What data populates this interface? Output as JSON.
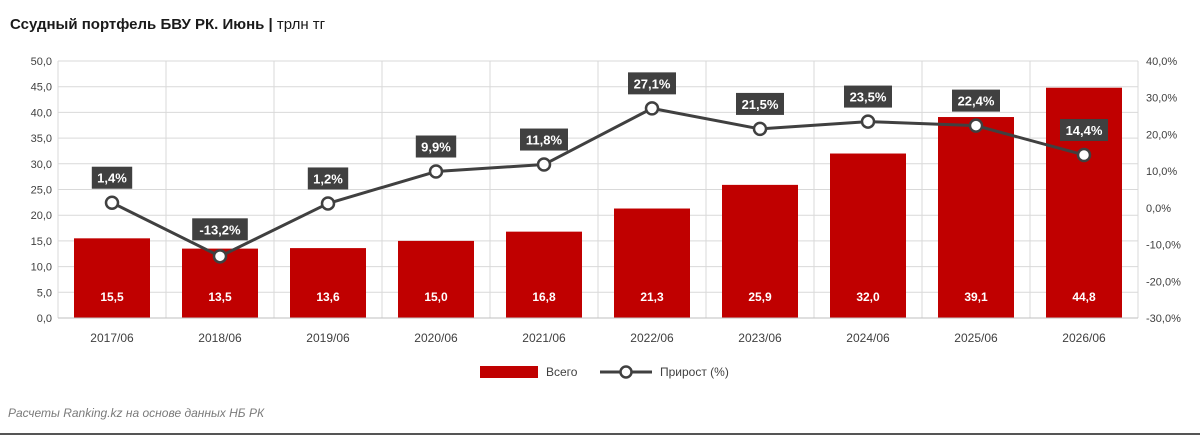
{
  "title": {
    "main": "Ссудный портфель БВУ РК. Июнь",
    "separator": " | ",
    "unit": "трлн тг"
  },
  "source": "Расчеты Ranking.kz на основе данных НБ РК",
  "colors": {
    "bar": "#c00000",
    "line": "#404040",
    "marker_fill": "#ffffff",
    "grid": "#d9d9d9",
    "label_box": "#404040"
  },
  "chart_data": {
    "type": "bar",
    "categories": [
      "2017/06",
      "2018/06",
      "2019/06",
      "2020/06",
      "2021/06",
      "2022/06",
      "2023/06",
      "2024/06",
      "2025/06",
      "2026/06"
    ],
    "series": [
      {
        "name": "Всего",
        "type": "bar",
        "axis": "left",
        "values": [
          15.5,
          13.5,
          13.6,
          15.0,
          16.8,
          21.3,
          25.9,
          32.0,
          39.1,
          44.8
        ],
        "labels": [
          "15,5",
          "13,5",
          "13,6",
          "15,0",
          "16,8",
          "21,3",
          "25,9",
          "32,0",
          "39,1",
          "44,8"
        ]
      },
      {
        "name": "Прирост (%)",
        "type": "line",
        "axis": "right",
        "values": [
          1.4,
          -13.2,
          1.2,
          9.9,
          11.8,
          27.1,
          21.5,
          23.5,
          22.4,
          14.4
        ],
        "labels": [
          "1,4%",
          "-13,2%",
          "1,2%",
          "9,9%",
          "11,8%",
          "27,1%",
          "21,5%",
          "23,5%",
          "22,4%",
          "14,4%"
        ]
      }
    ],
    "ylim_left": [
      0,
      50
    ],
    "yticks_left": [
      "0,0",
      "5,0",
      "10,0",
      "15,0",
      "20,0",
      "25,0",
      "30,0",
      "35,0",
      "40,0",
      "45,0",
      "50,0"
    ],
    "ylim_right": [
      -30,
      40
    ],
    "yticks_right": [
      "-30,0%",
      "-20,0%",
      "-10,0%",
      "0,0%",
      "10,0%",
      "20,0%",
      "30,0%",
      "40,0%"
    ],
    "grid": true,
    "legend_position": "bottom"
  }
}
